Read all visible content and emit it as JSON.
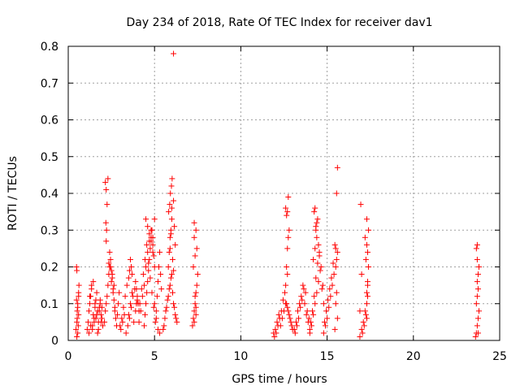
{
  "chart_data": {
    "type": "scatter",
    "title": "Day 234 of 2018, Rate Of TEC Index for receiver dav1",
    "xlabel": "GPS time / hours",
    "ylabel": "ROTI / TECUs",
    "xlim": [
      0,
      25
    ],
    "ylim": [
      0,
      0.8
    ],
    "xticks": [
      0,
      5,
      10,
      15,
      20,
      25
    ],
    "xtick_labels": [
      "0",
      "5",
      "10",
      "15",
      "20",
      "25"
    ],
    "yticks": [
      0,
      0.1,
      0.2,
      0.3,
      0.4,
      0.5,
      0.6,
      0.7,
      0.8
    ],
    "ytick_labels": [
      "0",
      "0.1",
      "0.2",
      "0.3",
      "0.4",
      "0.5",
      "0.6",
      "0.7",
      "0.8"
    ],
    "grid": true,
    "marker": "+",
    "marker_color": "#ff0000",
    "series": [
      {
        "name": "ROTI",
        "x": [
          0.45,
          0.5,
          0.52,
          0.55,
          0.6,
          0.62,
          0.5,
          0.48,
          0.55,
          0.58,
          0.6,
          0.5,
          0.55,
          0.52,
          0.48,
          0.6,
          1.1,
          1.15,
          1.2,
          1.25,
          1.3,
          1.35,
          1.4,
          1.45,
          1.5,
          1.55,
          1.6,
          1.65,
          1.7,
          1.75,
          1.8,
          1.85,
          1.9,
          1.95,
          1.2,
          1.3,
          1.4,
          1.5,
          1.6,
          1.7,
          1.8,
          1.9,
          2.0,
          1.25,
          1.35,
          1.45,
          1.55,
          1.65,
          1.75,
          1.85,
          1.95,
          2.1,
          2.15,
          2.2,
          2.25,
          2.3,
          2.35,
          2.4,
          2.45,
          2.5,
          2.55,
          2.6,
          2.65,
          2.7,
          2.75,
          2.8,
          2.85,
          2.9,
          2.95,
          2.2,
          2.22,
          2.18,
          2.25,
          2.2,
          2.15,
          2.3,
          2.35,
          2.4,
          2.5,
          2.6,
          2.7,
          2.45,
          2.55,
          2.65,
          3.0,
          3.1,
          3.2,
          3.3,
          3.4,
          3.5,
          3.6,
          3.7,
          3.8,
          3.9,
          4.0,
          3.05,
          3.15,
          3.25,
          3.35,
          3.45,
          3.55,
          3.65,
          3.75,
          3.85,
          3.95,
          3.5,
          3.55,
          3.6,
          3.65,
          3.7,
          3.9,
          3.95,
          4.0,
          4.05,
          4.1,
          4.1,
          4.2,
          4.3,
          4.4,
          4.5,
          4.6,
          4.7,
          4.8,
          4.9,
          5.0,
          4.15,
          4.25,
          4.35,
          4.45,
          4.55,
          4.65,
          4.75,
          4.85,
          4.95,
          4.4,
          4.45,
          4.5,
          4.55,
          4.6,
          4.65,
          4.7,
          4.75,
          4.8,
          4.85,
          4.9,
          4.95,
          5.0,
          4.5,
          4.6,
          4.7,
          4.8,
          4.9,
          5.05,
          5.1,
          5.15,
          5.2,
          5.25,
          5.3,
          5.35,
          5.4,
          5.0,
          5.1,
          5.2,
          5.3,
          5.5,
          5.6,
          5.7,
          5.8,
          5.9,
          6.0,
          6.1,
          6.2,
          6.3,
          5.55,
          5.65,
          5.75,
          5.85,
          5.95,
          6.05,
          6.15,
          6.25,
          5.8,
          5.85,
          5.9,
          5.95,
          6.0,
          5.82,
          5.88,
          5.92,
          5.98,
          6.02,
          6.1,
          6.15,
          6.2,
          6.05,
          6.1,
          5.9,
          5.95,
          6.0,
          6.1,
          7.2,
          7.25,
          7.3,
          7.35,
          7.4,
          7.45,
          7.5,
          7.25,
          7.35,
          7.45,
          7.3,
          7.4,
          7.3,
          7.35,
          7.4,
          7.3,
          7.4,
          11.9,
          12.0,
          12.1,
          12.2,
          12.3,
          12.4,
          12.5,
          12.6,
          12.7,
          12.8,
          12.9,
          13.0,
          11.95,
          12.05,
          12.15,
          12.25,
          12.35,
          12.45,
          12.55,
          12.65,
          12.75,
          12.85,
          12.95,
          12.6,
          12.65,
          12.7,
          12.75,
          12.8,
          12.7,
          12.75,
          12.6,
          12.65,
          12.7,
          13.1,
          13.2,
          13.3,
          13.4,
          13.5,
          13.6,
          13.7,
          13.8,
          13.9,
          14.0,
          13.15,
          13.25,
          13.35,
          13.45,
          13.55,
          13.65,
          13.75,
          13.85,
          13.95,
          14.0,
          14.1,
          14.2,
          14.3,
          14.4,
          14.5,
          14.6,
          14.7,
          14.8,
          14.05,
          14.15,
          14.25,
          14.35,
          14.45,
          14.55,
          14.65,
          14.75,
          14.2,
          14.3,
          14.4,
          14.35,
          14.45,
          14.25,
          14.5,
          14.55,
          14.4,
          14.3,
          14.35,
          14.8,
          14.9,
          15.0,
          15.1,
          15.2,
          15.3,
          15.4,
          15.5,
          15.6,
          14.85,
          14.95,
          15.05,
          15.15,
          15.25,
          15.35,
          15.45,
          15.55,
          15.5,
          15.55,
          15.6,
          15.5,
          15.55,
          15.6,
          15.45,
          16.9,
          17.0,
          17.1,
          17.2,
          17.3,
          17.35,
          17.4,
          16.95,
          17.05,
          17.15,
          17.25,
          17.3,
          17.35,
          17.4,
          16.9,
          17.0,
          17.2,
          17.3,
          17.35,
          17.25,
          17.3,
          17.35,
          17.3,
          23.6,
          23.65,
          23.7,
          23.75,
          23.8,
          23.65,
          23.7,
          23.75,
          23.7,
          23.75,
          23.8,
          23.7,
          23.65,
          23.7,
          23.75
        ],
        "y": [
          0.03,
          0.05,
          0.08,
          0.1,
          0.12,
          0.15,
          0.19,
          0.2,
          0.02,
          0.04,
          0.07,
          0.01,
          0.09,
          0.06,
          0.11,
          0.13,
          0.03,
          0.05,
          0.08,
          0.1,
          0.12,
          0.15,
          0.04,
          0.07,
          0.06,
          0.09,
          0.11,
          0.13,
          0.02,
          0.05,
          0.08,
          0.1,
          0.07,
          0.06,
          0.02,
          0.04,
          0.03,
          0.05,
          0.06,
          0.08,
          0.09,
          0.05,
          0.04,
          0.12,
          0.14,
          0.16,
          0.1,
          0.07,
          0.03,
          0.11,
          0.09,
          0.05,
          0.08,
          0.1,
          0.12,
          0.15,
          0.18,
          0.2,
          0.22,
          0.19,
          0.17,
          0.14,
          0.11,
          0.09,
          0.06,
          0.04,
          0.07,
          0.1,
          0.13,
          0.27,
          0.3,
          0.32,
          0.37,
          0.41,
          0.43,
          0.44,
          0.21,
          0.24,
          0.16,
          0.13,
          0.08,
          0.2,
          0.18,
          0.15,
          0.04,
          0.06,
          0.09,
          0.12,
          0.15,
          0.07,
          0.1,
          0.13,
          0.05,
          0.08,
          0.11,
          0.03,
          0.05,
          0.07,
          0.02,
          0.04,
          0.06,
          0.09,
          0.12,
          0.14,
          0.1,
          0.17,
          0.19,
          0.22,
          0.2,
          0.18,
          0.16,
          0.14,
          0.12,
          0.1,
          0.08,
          0.05,
          0.08,
          0.12,
          0.15,
          0.2,
          0.24,
          0.27,
          0.3,
          0.28,
          0.33,
          0.1,
          0.14,
          0.18,
          0.22,
          0.26,
          0.21,
          0.17,
          0.13,
          0.09,
          0.04,
          0.07,
          0.1,
          0.13,
          0.16,
          0.19,
          0.22,
          0.25,
          0.28,
          0.3,
          0.26,
          0.23,
          0.2,
          0.33,
          0.31,
          0.29,
          0.27,
          0.24,
          0.05,
          0.08,
          0.12,
          0.16,
          0.2,
          0.24,
          0.18,
          0.14,
          0.1,
          0.06,
          0.03,
          0.02,
          0.03,
          0.06,
          0.09,
          0.12,
          0.15,
          0.18,
          0.1,
          0.07,
          0.05,
          0.04,
          0.08,
          0.11,
          0.14,
          0.17,
          0.13,
          0.09,
          0.06,
          0.2,
          0.24,
          0.28,
          0.3,
          0.33,
          0.35,
          0.37,
          0.4,
          0.42,
          0.44,
          0.38,
          0.31,
          0.26,
          0.22,
          0.19,
          0.25,
          0.29,
          0.36,
          0.78,
          0.04,
          0.06,
          0.08,
          0.1,
          0.13,
          0.15,
          0.18,
          0.2,
          0.23,
          0.25,
          0.28,
          0.3,
          0.32,
          0.12,
          0.09,
          0.05,
          0.07,
          0.02,
          0.03,
          0.05,
          0.07,
          0.04,
          0.06,
          0.08,
          0.1,
          0.09,
          0.07,
          0.05,
          0.03,
          0.01,
          0.02,
          0.04,
          0.06,
          0.08,
          0.11,
          0.13,
          0.1,
          0.08,
          0.06,
          0.04,
          0.15,
          0.2,
          0.25,
          0.28,
          0.3,
          0.35,
          0.39,
          0.36,
          0.34,
          0.18,
          0.03,
          0.05,
          0.08,
          0.1,
          0.12,
          0.15,
          0.1,
          0.07,
          0.05,
          0.03,
          0.02,
          0.04,
          0.06,
          0.09,
          0.11,
          0.14,
          0.13,
          0.08,
          0.06,
          0.02,
          0.04,
          0.07,
          0.1,
          0.13,
          0.16,
          0.19,
          0.14,
          0.1,
          0.05,
          0.08,
          0.12,
          0.17,
          0.21,
          0.24,
          0.2,
          0.15,
          0.22,
          0.25,
          0.28,
          0.3,
          0.33,
          0.35,
          0.26,
          0.23,
          0.32,
          0.36,
          0.31,
          0.02,
          0.04,
          0.06,
          0.09,
          0.12,
          0.15,
          0.18,
          0.2,
          0.24,
          0.05,
          0.08,
          0.11,
          0.14,
          0.17,
          0.21,
          0.26,
          0.22,
          0.25,
          0.4,
          0.47,
          0.1,
          0.13,
          0.06,
          0.03,
          0.01,
          0.03,
          0.05,
          0.08,
          0.1,
          0.15,
          0.2,
          0.37,
          0.02,
          0.04,
          0.07,
          0.13,
          0.24,
          0.3,
          0.08,
          0.18,
          0.28,
          0.33,
          0.12,
          0.22,
          0.06,
          0.16,
          0.26,
          0.01,
          0.02,
          0.04,
          0.06,
          0.08,
          0.1,
          0.12,
          0.14,
          0.16,
          0.18,
          0.2,
          0.22,
          0.25,
          0.26,
          0.02
        ]
      }
    ]
  }
}
